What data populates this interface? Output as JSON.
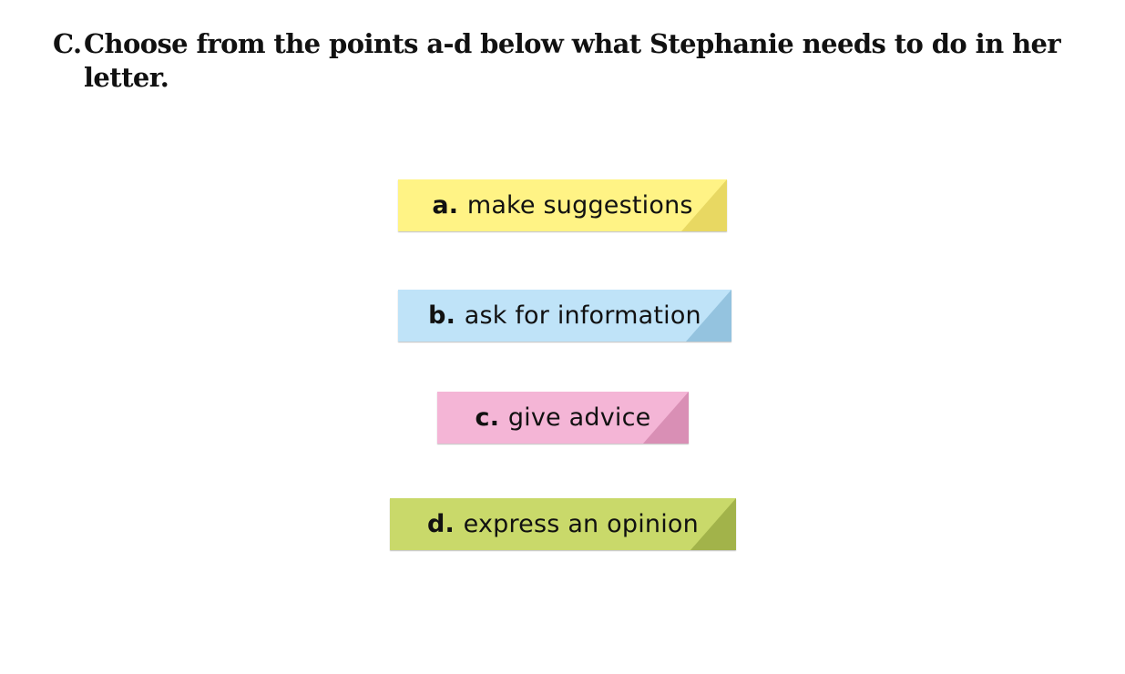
{
  "question": {
    "label": "C.",
    "text": "Choose from the points a-d below what Stephanie needs to do in her letter."
  },
  "options": [
    {
      "letter": "a.",
      "text": "make suggestions",
      "color": "#fff385",
      "corner_color": "#e8d862"
    },
    {
      "letter": "b.",
      "text": "ask for information",
      "color": "#bfe3f8",
      "corner_color": "#94c3df"
    },
    {
      "letter": "c.",
      "text": "give advice",
      "color": "#f4b5d6",
      "corner_color": "#d98fb5"
    },
    {
      "letter": "d.",
      "text": "express an opinion",
      "color": "#c9d96a",
      "corner_color": "#a2b34a"
    }
  ]
}
